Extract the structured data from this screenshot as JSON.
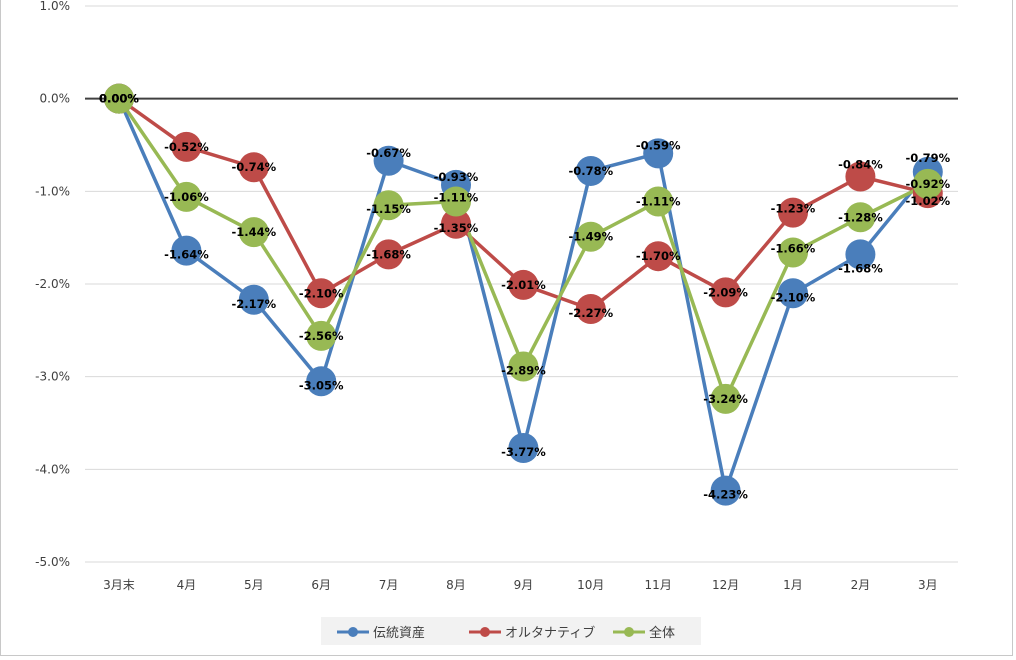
{
  "chart_data": {
    "type": "line",
    "categories": [
      "3月末",
      "4月",
      "5月",
      "6月",
      "7月",
      "8月",
      "9月",
      "10月",
      "11月",
      "12月",
      "1月",
      "2月",
      "3月"
    ],
    "series": [
      {
        "name": "伝統資産",
        "color": "#4a7ebb",
        "values": [
          0.0,
          -1.64,
          -2.17,
          -3.05,
          -0.67,
          -0.93,
          -3.77,
          -0.78,
          -0.59,
          -4.23,
          -2.1,
          -1.68,
          -0.79
        ],
        "labels": [
          "0.00%",
          "-1.64%",
          "-2.17%",
          "-3.05%",
          "-0.67%",
          "-0.93%",
          "-3.77%",
          "-0.78%",
          "-0.59%",
          "-4.23%",
          "-2.10%",
          "-1.68%",
          "-0.79%"
        ]
      },
      {
        "name": "オルタナティブ",
        "color": "#be4b48",
        "values": [
          0.0,
          -0.52,
          -0.74,
          -2.1,
          -1.68,
          -1.35,
          -2.01,
          -2.27,
          -1.7,
          -2.09,
          -1.23,
          -0.84,
          -1.02
        ],
        "labels": [
          "0.00%",
          "-0.52%",
          "-0.74%",
          "-2.10%",
          "-1.68%",
          "-1.35%",
          "-2.01%",
          "-2.27%",
          "-1.70%",
          "-2.09%",
          "-1.23%",
          "-0.84%",
          "-1.02%"
        ]
      },
      {
        "name": "全体",
        "color": "#98b954",
        "values": [
          0.0,
          -1.06,
          -1.44,
          -2.56,
          -1.15,
          -1.11,
          -2.89,
          -1.49,
          -1.11,
          -3.24,
          -1.66,
          -1.28,
          -0.92
        ],
        "labels": [
          "0.00%",
          "-1.06%",
          "-1.44%",
          "-2.56%",
          "-1.15%",
          "-1.11%",
          "-2.89%",
          "-1.49%",
          "-1.11%",
          "-3.24%",
          "-1.66%",
          "-1.28%",
          "-0.92%"
        ]
      }
    ],
    "y_ticks": [
      "1.0%",
      "0.0%",
      "-1.0%",
      "-2.0%",
      "-3.0%",
      "-4.0%",
      "-5.0%"
    ],
    "y_tick_values": [
      1.0,
      0.0,
      -1.0,
      -2.0,
      -3.0,
      -4.0,
      -5.0
    ],
    "ylim": [
      -5.0,
      1.0
    ],
    "grid": true,
    "legend_position": "bottom"
  }
}
